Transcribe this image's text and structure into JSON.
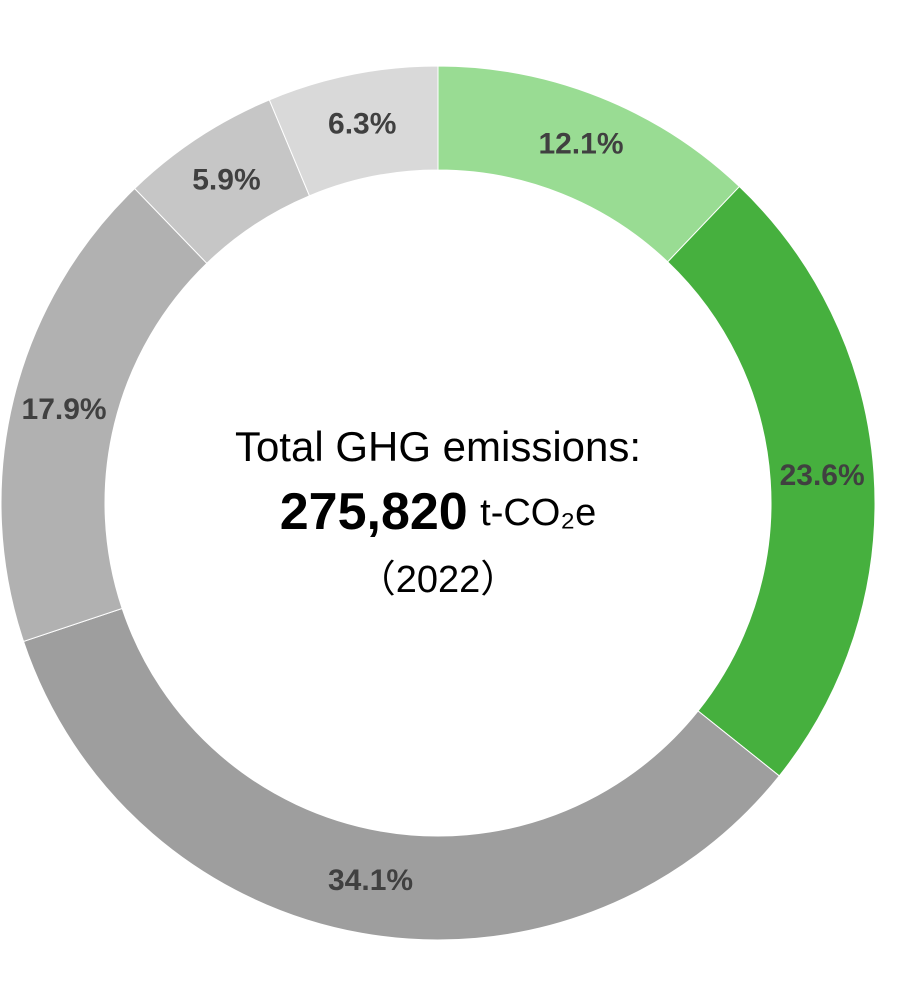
{
  "chart_data": {
    "type": "donut",
    "categories": [
      null,
      null,
      null,
      null,
      null,
      null
    ],
    "values": [
      12.1,
      23.6,
      34.1,
      17.9,
      5.9,
      6.3
    ],
    "value_labels": [
      "12.1%",
      "23.6%",
      "34.1%",
      "17.9%",
      "5.9%",
      "6.3%"
    ],
    "colors": [
      "#99dc93",
      "#46b03e",
      "#9e9e9e",
      "#b1b1b1",
      "#c6c6c6",
      "#d9d9d9"
    ],
    "center_title": "Total GHG emissions:",
    "center_total": "275,820",
    "center_unit": "t-CO₂e",
    "center_year": "（2022）"
  }
}
